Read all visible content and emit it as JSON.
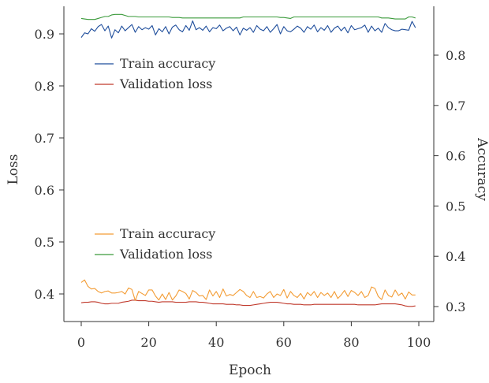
{
  "chart_data": {
    "type": "line",
    "x_axis": {
      "label": "Epoch",
      "range": [
        0,
        100
      ],
      "ticks": [
        0,
        20,
        40,
        60,
        80,
        100
      ]
    },
    "left_axis": {
      "label": "Loss",
      "range": [
        0.35,
        0.95
      ],
      "ticks": [
        0.4,
        0.5,
        0.6,
        0.7,
        0.8,
        0.9
      ]
    },
    "right_axis": {
      "label": "Accuracy",
      "range": [
        0.29,
        0.88
      ],
      "ticks": [
        0.3,
        0.4,
        0.5,
        0.6,
        0.7,
        0.8
      ]
    },
    "grid": false,
    "legends": [
      {
        "placement": "upper-left",
        "entries": [
          {
            "label": "Train accuracy",
            "color": "#1f4e9c"
          },
          {
            "label": "Validation loss",
            "color": "#c0392b"
          }
        ]
      },
      {
        "placement": "lower-left",
        "entries": [
          {
            "label": "Train accuracy",
            "color": "#f39c34"
          },
          {
            "label": "Validation loss",
            "color": "#3a9a3a"
          }
        ]
      }
    ],
    "series": [
      {
        "axis": "left",
        "color": "#1f4e9c",
        "x": [
          0,
          1,
          2,
          3,
          4,
          5,
          6,
          7,
          8,
          9,
          10,
          11,
          12,
          13,
          14,
          15,
          16,
          17,
          18,
          19,
          20,
          21,
          22,
          23,
          24,
          25,
          26,
          27,
          28,
          29,
          30,
          31,
          32,
          33,
          34,
          35,
          36,
          37,
          38,
          39,
          40,
          41,
          42,
          43,
          44,
          45,
          46,
          47,
          48,
          49,
          50,
          51,
          52,
          53,
          54,
          55,
          56,
          57,
          58,
          59,
          60,
          61,
          62,
          63,
          64,
          65,
          66,
          67,
          68,
          69,
          70,
          71,
          72,
          73,
          74,
          75,
          76,
          77,
          78,
          79,
          80,
          81,
          82,
          83,
          84,
          85,
          86,
          87,
          88,
          89,
          90,
          91,
          92,
          93,
          94,
          95,
          96,
          97,
          98,
          99
        ],
        "y": [
          0.893,
          0.902,
          0.9,
          0.91,
          0.905,
          0.914,
          0.918,
          0.906,
          0.915,
          0.892,
          0.908,
          0.902,
          0.915,
          0.906,
          0.912,
          0.918,
          0.903,
          0.914,
          0.908,
          0.912,
          0.909,
          0.916,
          0.898,
          0.91,
          0.904,
          0.914,
          0.9,
          0.913,
          0.917,
          0.908,
          0.904,
          0.916,
          0.907,
          0.925,
          0.908,
          0.912,
          0.907,
          0.915,
          0.904,
          0.912,
          0.91,
          0.917,
          0.906,
          0.911,
          0.914,
          0.906,
          0.913,
          0.898,
          0.911,
          0.907,
          0.912,
          0.903,
          0.916,
          0.909,
          0.906,
          0.914,
          0.903,
          0.91,
          0.918,
          0.9,
          0.914,
          0.906,
          0.904,
          0.909,
          0.915,
          0.911,
          0.903,
          0.914,
          0.909,
          0.917,
          0.904,
          0.912,
          0.907,
          0.916,
          0.903,
          0.911,
          0.915,
          0.906,
          0.913,
          0.902,
          0.916,
          0.908,
          0.91,
          0.912,
          0.917,
          0.903,
          0.915,
          0.906,
          0.911,
          0.903,
          0.92,
          0.912,
          0.908,
          0.906,
          0.906,
          0.909,
          0.908,
          0.907,
          0.924,
          0.912
        ]
      },
      {
        "axis": "left",
        "color": "#c0392b",
        "x": [
          0,
          1,
          2,
          3,
          4,
          5,
          6,
          7,
          8,
          9,
          10,
          11,
          12,
          13,
          14,
          15,
          16,
          17,
          18,
          19,
          20,
          21,
          22,
          23,
          24,
          25,
          26,
          27,
          28,
          29,
          30,
          31,
          32,
          33,
          34,
          35,
          36,
          37,
          38,
          39,
          40,
          41,
          42,
          43,
          44,
          45,
          46,
          47,
          48,
          49,
          50,
          51,
          52,
          53,
          54,
          55,
          56,
          57,
          58,
          59,
          60,
          61,
          62,
          63,
          64,
          65,
          66,
          67,
          68,
          69,
          70,
          71,
          72,
          73,
          74,
          75,
          76,
          77,
          78,
          79,
          80,
          81,
          82,
          83,
          84,
          85,
          86,
          87,
          88,
          89,
          90,
          91,
          92,
          93,
          94,
          95,
          96,
          97,
          98,
          99
        ],
        "y": [
          0.383,
          0.384,
          0.384,
          0.385,
          0.385,
          0.384,
          0.382,
          0.381,
          0.381,
          0.382,
          0.382,
          0.382,
          0.384,
          0.385,
          0.386,
          0.388,
          0.388,
          0.387,
          0.387,
          0.387,
          0.386,
          0.386,
          0.385,
          0.384,
          0.385,
          0.385,
          0.385,
          0.385,
          0.384,
          0.384,
          0.384,
          0.384,
          0.385,
          0.385,
          0.385,
          0.384,
          0.384,
          0.383,
          0.382,
          0.381,
          0.381,
          0.381,
          0.381,
          0.38,
          0.38,
          0.38,
          0.379,
          0.379,
          0.378,
          0.378,
          0.378,
          0.379,
          0.38,
          0.381,
          0.382,
          0.383,
          0.384,
          0.384,
          0.384,
          0.383,
          0.382,
          0.381,
          0.381,
          0.38,
          0.38,
          0.38,
          0.379,
          0.379,
          0.379,
          0.38,
          0.38,
          0.38,
          0.38,
          0.38,
          0.38,
          0.38,
          0.38,
          0.38,
          0.38,
          0.38,
          0.38,
          0.38,
          0.379,
          0.379,
          0.379,
          0.379,
          0.379,
          0.379,
          0.38,
          0.381,
          0.381,
          0.381,
          0.381,
          0.381,
          0.38,
          0.379,
          0.377,
          0.376,
          0.376,
          0.377
        ]
      },
      {
        "axis": "right",
        "color": "#f39c34",
        "x": [
          0,
          1,
          2,
          3,
          4,
          5,
          6,
          7,
          8,
          9,
          10,
          11,
          12,
          13,
          14,
          15,
          16,
          17,
          18,
          19,
          20,
          21,
          22,
          23,
          24,
          25,
          26,
          27,
          28,
          29,
          30,
          31,
          32,
          33,
          34,
          35,
          36,
          37,
          38,
          39,
          40,
          41,
          42,
          43,
          44,
          45,
          46,
          47,
          48,
          49,
          50,
          51,
          52,
          53,
          54,
          55,
          56,
          57,
          58,
          59,
          60,
          61,
          62,
          63,
          64,
          65,
          66,
          67,
          68,
          69,
          70,
          71,
          72,
          73,
          74,
          75,
          76,
          77,
          78,
          79,
          80,
          81,
          82,
          83,
          84,
          85,
          86,
          87,
          88,
          89,
          90,
          91,
          92,
          93,
          94,
          95,
          96,
          97,
          98,
          99
        ],
        "y": [
          0.348,
          0.353,
          0.34,
          0.335,
          0.336,
          0.33,
          0.327,
          0.33,
          0.331,
          0.327,
          0.327,
          0.328,
          0.33,
          0.325,
          0.337,
          0.334,
          0.312,
          0.33,
          0.326,
          0.322,
          0.333,
          0.333,
          0.321,
          0.313,
          0.325,
          0.314,
          0.328,
          0.313,
          0.321,
          0.333,
          0.33,
          0.326,
          0.315,
          0.332,
          0.328,
          0.321,
          0.322,
          0.314,
          0.333,
          0.321,
          0.33,
          0.318,
          0.335,
          0.321,
          0.324,
          0.322,
          0.328,
          0.334,
          0.33,
          0.322,
          0.318,
          0.33,
          0.318,
          0.32,
          0.317,
          0.325,
          0.33,
          0.318,
          0.325,
          0.322,
          0.334,
          0.317,
          0.33,
          0.322,
          0.318,
          0.326,
          0.315,
          0.328,
          0.322,
          0.33,
          0.318,
          0.328,
          0.322,
          0.327,
          0.318,
          0.33,
          0.316,
          0.323,
          0.332,
          0.32,
          0.332,
          0.328,
          0.322,
          0.33,
          0.318,
          0.322,
          0.339,
          0.336,
          0.32,
          0.314,
          0.333,
          0.322,
          0.319,
          0.333,
          0.322,
          0.327,
          0.315,
          0.329,
          0.323,
          0.323
        ]
      },
      {
        "axis": "right",
        "color": "#3a9a3a",
        "x": [
          0,
          2,
          4,
          5,
          6,
          7,
          8,
          9,
          10,
          12,
          13,
          14,
          16,
          17,
          20,
          26,
          27,
          29,
          30,
          47,
          48,
          58,
          59,
          60,
          62,
          63,
          88,
          89,
          91,
          92,
          93,
          96,
          97,
          98,
          99
        ],
        "y": [
          0.873,
          0.871,
          0.871,
          0.873,
          0.875,
          0.877,
          0.877,
          0.88,
          0.881,
          0.881,
          0.879,
          0.877,
          0.877,
          0.876,
          0.876,
          0.876,
          0.875,
          0.875,
          0.874,
          0.874,
          0.876,
          0.876,
          0.875,
          0.875,
          0.873,
          0.876,
          0.876,
          0.874,
          0.874,
          0.873,
          0.872,
          0.872,
          0.876,
          0.876,
          0.874
        ]
      }
    ]
  }
}
